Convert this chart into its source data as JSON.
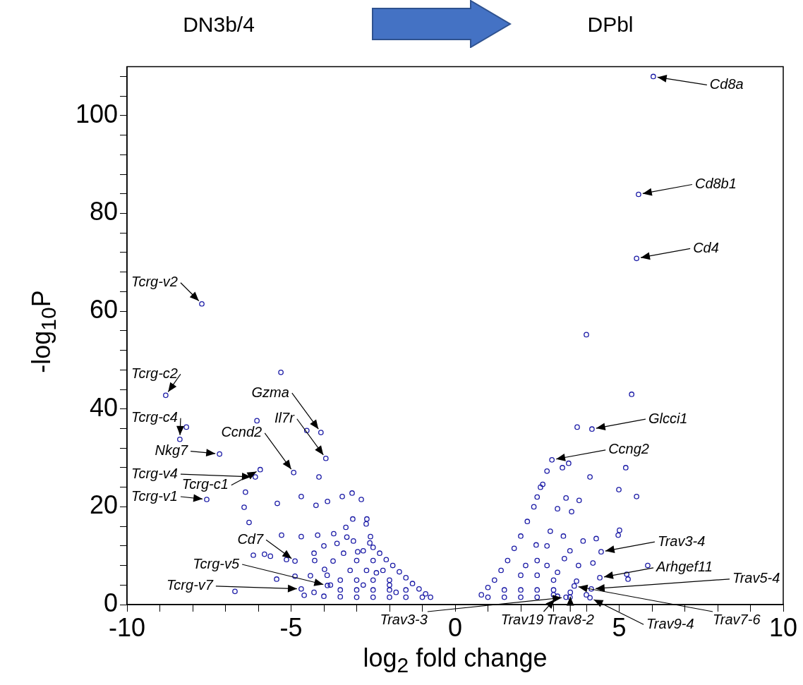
{
  "chart_data": {
    "type": "scatter",
    "xlabel": "log$_{2}$ fold change",
    "ylabel": "-log$_{10}$P",
    "xlim": [
      -10,
      10
    ],
    "xticks": [
      -10,
      {
        "value": -9,
        "label": null
      },
      {
        "value": -8,
        "label": null
      },
      {
        "value": -7,
        "label": null
      },
      {
        "value": -6,
        "label": null
      },
      -5,
      {
        "value": -4,
        "label": null
      },
      {
        "value": -3,
        "label": null
      },
      {
        "value": -2,
        "label": null
      },
      {
        "value": -1,
        "label": null
      },
      0,
      {
        "value": 1,
        "label": null
      },
      {
        "value": 2,
        "label": null
      },
      {
        "value": 3,
        "label": null
      },
      {
        "value": 4,
        "label": null
      },
      5,
      {
        "value": 6,
        "label": null
      },
      {
        "value": 7,
        "label": null
      },
      {
        "value": 8,
        "label": null
      },
      {
        "value": 9,
        "label": null
      },
      10
    ],
    "ylim": [
      0,
      110
    ],
    "yticks": [
      0,
      {
        "value": 4,
        "label": null
      },
      {
        "value": 8,
        "label": null
      },
      {
        "value": 12,
        "label": null
      },
      {
        "value": 16,
        "label": null
      },
      20,
      {
        "value": 24,
        "label": null
      },
      {
        "value": 28,
        "label": null
      },
      {
        "value": 32,
        "label": null
      },
      {
        "value": 36,
        "label": null
      },
      40,
      {
        "value": 44,
        "label": null
      },
      {
        "value": 48,
        "label": null
      },
      {
        "value": 52,
        "label": null
      },
      {
        "value": 56,
        "label": null
      },
      60,
      {
        "value": 64,
        "label": null
      },
      {
        "value": 68,
        "label": null
      },
      {
        "value": 72,
        "label": null
      },
      {
        "value": 76,
        "label": null
      },
      80,
      {
        "value": 84,
        "label": null
      },
      {
        "value": 88,
        "label": null
      },
      {
        "value": 92,
        "label": null
      },
      {
        "value": 96,
        "label": null
      },
      100,
      {
        "value": 104,
        "label": null
      },
      {
        "value": 108,
        "label": null
      }
    ],
    "grid": false,
    "legend": false,
    "marker": "circle",
    "series": [
      {
        "color": "#1a1aa6",
        "x": [
          -7.72,
          -8.82,
          -8.19,
          -8.39,
          -7.18,
          -6.04,
          -5.31,
          -4.52,
          -4.09,
          -3.94,
          -5.94,
          -6.09,
          -4.92,
          -4.15,
          -7.57,
          -6.39,
          -6.43,
          -5.42,
          -4.69,
          -4.24,
          -3.89,
          -3.44,
          -3.14,
          -2.86,
          -6.28,
          -5.29,
          -4.69,
          -4.19,
          -5.14,
          -4.88,
          -5.81,
          -6.15,
          -5.63,
          -4.69,
          -6.71,
          -3.89,
          -5.44,
          -4.88,
          -4.41,
          -3.98,
          -3.72,
          -4.28,
          -3.33,
          -3.12,
          -2.69,
          -2.71,
          -2.97,
          -2.58,
          -0.75,
          -0.9,
          -1.1,
          -1.3,
          -1.5,
          -1.7,
          -1.9,
          -2.1,
          -2.3,
          -2.5,
          -2.6,
          -1.0,
          -1.5,
          -2.0,
          -2.5,
          -3.0,
          -3.5,
          -4.0,
          -1.5,
          -2.0,
          -2.5,
          -3.0,
          -3.5,
          -2.0,
          -2.5,
          -3.0,
          -3.5,
          -2.2,
          -2.7,
          -3.2,
          -2.5,
          -3.0,
          -3.4,
          -2.8,
          -3.6,
          -3.1,
          -2.0,
          -2.4,
          -1.8,
          -2.8,
          -3.8,
          -4.3,
          -4.6,
          -3.9,
          -4.3,
          -4.0,
          -3.7,
          -3.3,
          6.04,
          5.59,
          5.53,
          4.0,
          5.38,
          3.72,
          4.17,
          2.95,
          3.46,
          3.27,
          2.8,
          4.11,
          5.2,
          4.99,
          5.53,
          3.38,
          3.78,
          3.12,
          3.55,
          0.8,
          1.0,
          1.2,
          1.4,
          1.6,
          1.8,
          2.0,
          2.2,
          2.4,
          2.5,
          2.6,
          2.67,
          5.01,
          4.97,
          4.45,
          4.41,
          5.23,
          5.27,
          5.87,
          4.15,
          4.11,
          3.38,
          3.51,
          3.63,
          3.12,
          3.12,
          3.33,
          2.8,
          3.76,
          2.15,
          2.47,
          1.5,
          2.0,
          2.5,
          3.0,
          2.0,
          2.5,
          3.0,
          2.5,
          2.8,
          2.9,
          3.3,
          3.5,
          3.9,
          4.3,
          4.2,
          3.7,
          4.0,
          3.0,
          2.0,
          1.0,
          1.5,
          2.5,
          3.5
        ],
        "values": [
          61.5,
          42.8,
          36.3,
          33.8,
          30.8,
          37.6,
          47.5,
          35.6,
          35.2,
          29.9,
          27.6,
          26.1,
          27.0,
          26.1,
          21.5,
          23.0,
          19.9,
          20.7,
          22.1,
          20.3,
          21.1,
          22.1,
          22.8,
          21.5,
          16.8,
          14.2,
          13.9,
          14.2,
          9.2,
          8.9,
          10.3,
          10.1,
          9.9,
          3.2,
          2.7,
          3.9,
          5.2,
          5.8,
          5.9,
          7.2,
          8.9,
          9.0,
          15.8,
          17.5,
          17.5,
          16.5,
          10.8,
          13.9,
          1.5,
          2.2,
          3.2,
          4.3,
          5.5,
          6.7,
          8.0,
          9.2,
          10.5,
          11.7,
          12.6,
          1.5,
          1.5,
          1.5,
          1.5,
          1.5,
          1.6,
          1.7,
          3,
          3,
          3,
          3,
          3,
          5,
          5,
          5,
          5,
          7,
          7,
          7,
          9,
          9,
          10.5,
          11,
          12.5,
          13,
          4,
          6.5,
          2.5,
          4,
          4,
          2.5,
          1.9,
          6,
          10.5,
          12,
          14.5,
          13.8,
          108.0,
          83.9,
          70.8,
          55.2,
          43.0,
          36.3,
          35.9,
          29.6,
          28.9,
          28.0,
          27.3,
          26.1,
          28.0,
          23.5,
          22.1,
          21.8,
          21.3,
          19.6,
          19.0,
          2,
          3.5,
          5,
          7,
          9,
          11.5,
          14,
          17,
          20,
          22,
          24,
          24.6,
          15.2,
          14.2,
          10.8,
          5.5,
          6.2,
          5.2,
          8.0,
          3.2,
          1.4,
          1.5,
          2.5,
          3.8,
          1.7,
          6.6,
          9.4,
          8.0,
          8.0,
          8,
          12.2,
          3,
          3,
          3,
          3,
          6,
          6,
          5,
          9,
          12,
          15,
          14,
          11,
          13,
          13.5,
          8.5,
          4.8,
          2,
          2,
          1.5,
          1.5,
          1.5,
          1.5,
          1.5
        ]
      }
    ],
    "annotations": [
      "DN3b/4",
      "DPbl",
      {
        "text": "Tcrg-v2",
        "x": -7.72,
        "y": 61.5
      },
      {
        "text": "Tcrg-c2",
        "x": -8.82,
        "y": 42.8
      },
      {
        "text": "Tcrg-c4",
        "x": -8.39,
        "y": 33.8
      },
      {
        "text": "Nkg7",
        "x": -7.18,
        "y": 30.8
      },
      {
        "text": "Gzma",
        "x": -4.09,
        "y": 35.2
      },
      {
        "text": "Ccnd2",
        "x": -4.92,
        "y": 27.0
      },
      {
        "text": "Il7r",
        "x": -3.94,
        "y": 29.9
      },
      {
        "text": "Tcrg-c1",
        "x": -5.94,
        "y": 27.6
      },
      {
        "text": "Tcrg-v4",
        "x": -6.09,
        "y": 26.1
      },
      {
        "text": "Tcrg-v1",
        "x": -7.57,
        "y": 21.5
      },
      {
        "text": "Cd7",
        "x": -4.88,
        "y": 8.9
      },
      {
        "text": "Tcrg-v5",
        "x": -3.89,
        "y": 3.9
      },
      {
        "text": "Tcrg-v7",
        "x": -4.69,
        "y": 3.2
      },
      {
        "text": "Cd8a",
        "x": 6.04,
        "y": 108.0
      },
      {
        "text": "Cd8b1",
        "x": 5.59,
        "y": 83.9
      },
      {
        "text": "Cd4",
        "x": 5.53,
        "y": 70.8
      },
      {
        "text": "Glcci1",
        "x": 4.17,
        "y": 35.9
      },
      {
        "text": "Ccng2",
        "x": 2.95,
        "y": 29.6
      },
      {
        "text": "Trav3-4",
        "x": 4.45,
        "y": 10.8
      },
      {
        "text": "Arhgef11",
        "x": 4.41,
        "y": 5.5
      },
      {
        "text": "Trav5-4",
        "x": 4.15,
        "y": 3.2
      },
      {
        "text": "Trav9-4",
        "x": 4.11,
        "y": 1.4
      },
      {
        "text": "Trav19",
        "x": 3.12,
        "y": 1.7
      },
      {
        "text": "Trav3-3",
        "x": 3.38,
        "y": 1.5
      },
      {
        "text": "Trav8-2",
        "x": 3.51,
        "y": 2.5
      },
      {
        "text": "Trav7-6",
        "x": 3.63,
        "y": 3.8
      }
    ]
  }
}
